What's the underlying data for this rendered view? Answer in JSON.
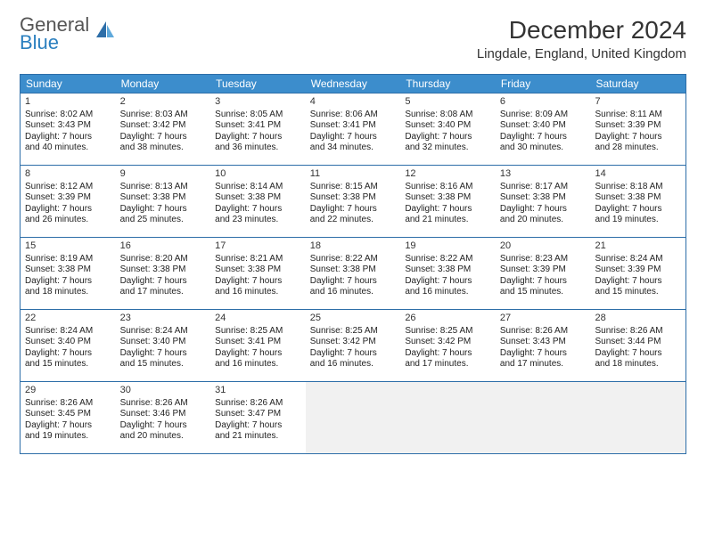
{
  "logo": {
    "line1": "General",
    "line2": "Blue"
  },
  "title": "December 2024",
  "location": "Lingdale, England, United Kingdom",
  "colors": {
    "header_bg": "#3c8dcc",
    "border": "#2d6ea8",
    "logo_grey": "#555555",
    "logo_blue": "#2a7fbf",
    "empty_bg": "#f1f1f1"
  },
  "dayNames": [
    "Sunday",
    "Monday",
    "Tuesday",
    "Wednesday",
    "Thursday",
    "Friday",
    "Saturday"
  ],
  "weeks": [
    [
      {
        "n": "1",
        "sr": "8:02 AM",
        "ss": "3:43 PM",
        "dh": "7",
        "dm": "40"
      },
      {
        "n": "2",
        "sr": "8:03 AM",
        "ss": "3:42 PM",
        "dh": "7",
        "dm": "38"
      },
      {
        "n": "3",
        "sr": "8:05 AM",
        "ss": "3:41 PM",
        "dh": "7",
        "dm": "36"
      },
      {
        "n": "4",
        "sr": "8:06 AM",
        "ss": "3:41 PM",
        "dh": "7",
        "dm": "34"
      },
      {
        "n": "5",
        "sr": "8:08 AM",
        "ss": "3:40 PM",
        "dh": "7",
        "dm": "32"
      },
      {
        "n": "6",
        "sr": "8:09 AM",
        "ss": "3:40 PM",
        "dh": "7",
        "dm": "30"
      },
      {
        "n": "7",
        "sr": "8:11 AM",
        "ss": "3:39 PM",
        "dh": "7",
        "dm": "28"
      }
    ],
    [
      {
        "n": "8",
        "sr": "8:12 AM",
        "ss": "3:39 PM",
        "dh": "7",
        "dm": "26"
      },
      {
        "n": "9",
        "sr": "8:13 AM",
        "ss": "3:38 PM",
        "dh": "7",
        "dm": "25"
      },
      {
        "n": "10",
        "sr": "8:14 AM",
        "ss": "3:38 PM",
        "dh": "7",
        "dm": "23"
      },
      {
        "n": "11",
        "sr": "8:15 AM",
        "ss": "3:38 PM",
        "dh": "7",
        "dm": "22"
      },
      {
        "n": "12",
        "sr": "8:16 AM",
        "ss": "3:38 PM",
        "dh": "7",
        "dm": "21"
      },
      {
        "n": "13",
        "sr": "8:17 AM",
        "ss": "3:38 PM",
        "dh": "7",
        "dm": "20"
      },
      {
        "n": "14",
        "sr": "8:18 AM",
        "ss": "3:38 PM",
        "dh": "7",
        "dm": "19"
      }
    ],
    [
      {
        "n": "15",
        "sr": "8:19 AM",
        "ss": "3:38 PM",
        "dh": "7",
        "dm": "18"
      },
      {
        "n": "16",
        "sr": "8:20 AM",
        "ss": "3:38 PM",
        "dh": "7",
        "dm": "17"
      },
      {
        "n": "17",
        "sr": "8:21 AM",
        "ss": "3:38 PM",
        "dh": "7",
        "dm": "16"
      },
      {
        "n": "18",
        "sr": "8:22 AM",
        "ss": "3:38 PM",
        "dh": "7",
        "dm": "16"
      },
      {
        "n": "19",
        "sr": "8:22 AM",
        "ss": "3:38 PM",
        "dh": "7",
        "dm": "16"
      },
      {
        "n": "20",
        "sr": "8:23 AM",
        "ss": "3:39 PM",
        "dh": "7",
        "dm": "15"
      },
      {
        "n": "21",
        "sr": "8:24 AM",
        "ss": "3:39 PM",
        "dh": "7",
        "dm": "15"
      }
    ],
    [
      {
        "n": "22",
        "sr": "8:24 AM",
        "ss": "3:40 PM",
        "dh": "7",
        "dm": "15"
      },
      {
        "n": "23",
        "sr": "8:24 AM",
        "ss": "3:40 PM",
        "dh": "7",
        "dm": "15"
      },
      {
        "n": "24",
        "sr": "8:25 AM",
        "ss": "3:41 PM",
        "dh": "7",
        "dm": "16"
      },
      {
        "n": "25",
        "sr": "8:25 AM",
        "ss": "3:42 PM",
        "dh": "7",
        "dm": "16"
      },
      {
        "n": "26",
        "sr": "8:25 AM",
        "ss": "3:42 PM",
        "dh": "7",
        "dm": "17"
      },
      {
        "n": "27",
        "sr": "8:26 AM",
        "ss": "3:43 PM",
        "dh": "7",
        "dm": "17"
      },
      {
        "n": "28",
        "sr": "8:26 AM",
        "ss": "3:44 PM",
        "dh": "7",
        "dm": "18"
      }
    ],
    [
      {
        "n": "29",
        "sr": "8:26 AM",
        "ss": "3:45 PM",
        "dh": "7",
        "dm": "19"
      },
      {
        "n": "30",
        "sr": "8:26 AM",
        "ss": "3:46 PM",
        "dh": "7",
        "dm": "20"
      },
      {
        "n": "31",
        "sr": "8:26 AM",
        "ss": "3:47 PM",
        "dh": "7",
        "dm": "21"
      },
      null,
      null,
      null,
      null
    ]
  ],
  "labels": {
    "sunrise": "Sunrise: ",
    "sunset": "Sunset: ",
    "daylight1": "Daylight: ",
    "hours": " hours",
    "and": "and ",
    "minutes": " minutes."
  }
}
